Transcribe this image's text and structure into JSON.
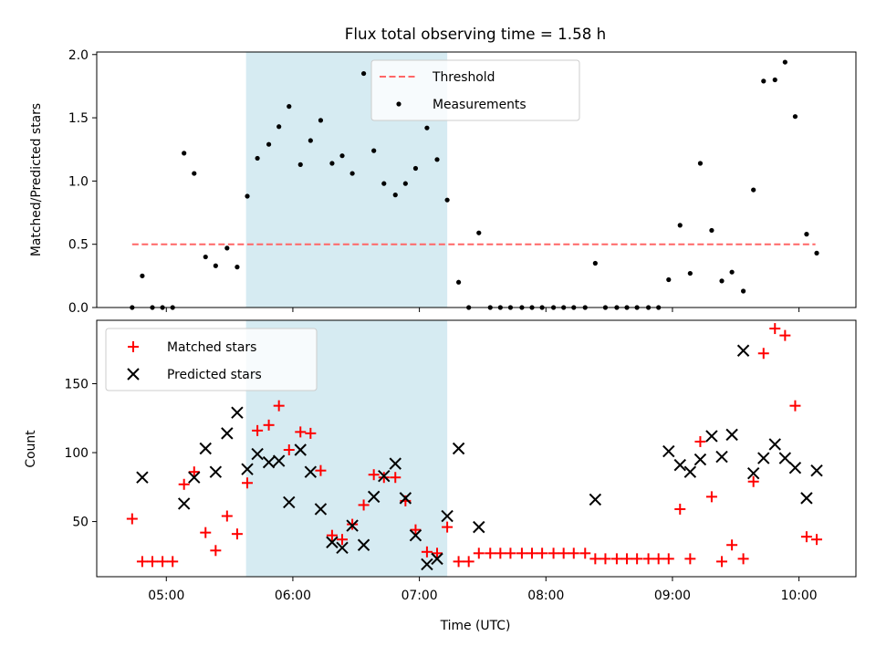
{
  "title": "Flux total observing time = 1.58 h",
  "x_axis": {
    "label": "Time (UTC)",
    "ticks": [
      {
        "value": 5.0,
        "label": "05:00"
      },
      {
        "value": 6.0,
        "label": "06:00"
      },
      {
        "value": 7.0,
        "label": "07:00"
      },
      {
        "value": 8.0,
        "label": "08:00"
      },
      {
        "value": 9.0,
        "label": "09:00"
      },
      {
        "value": 10.0,
        "label": "10:00"
      }
    ]
  },
  "chart_data": [
    {
      "type": "scatter",
      "title": "Flux total observing time = 1.58 h",
      "xlabel": "Time (UTC)",
      "ylabel": "Matched/Predicted stars",
      "xlim": [
        4.45,
        10.45
      ],
      "ylim": [
        0,
        2.02
      ],
      "yticks": [
        0.0,
        0.5,
        1.0,
        1.5,
        2.0
      ],
      "ytick_labels": [
        "0.0",
        "0.5",
        "1.0",
        "1.5",
        "2.0"
      ],
      "grid": false,
      "legend": {
        "placement": "top-center",
        "entries": [
          "Threshold",
          "Measurements"
        ]
      },
      "shaded_interval": {
        "x": [
          5.63,
          7.22
        ],
        "color": "#add8e6"
      },
      "threshold": {
        "name": "Threshold",
        "value": 0.5,
        "x": [
          4.73,
          10.13
        ],
        "color": "#ff6666"
      },
      "series": [
        {
          "name": "Measurements",
          "color": "#000000",
          "points": [
            [
              4.73,
              0.0
            ],
            [
              4.81,
              0.25
            ],
            [
              4.89,
              0.0
            ],
            [
              4.97,
              0.0
            ],
            [
              5.05,
              0.0
            ],
            [
              5.14,
              1.22
            ],
            [
              5.22,
              1.06
            ],
            [
              5.31,
              0.4
            ],
            [
              5.39,
              0.33
            ],
            [
              5.48,
              0.47
            ],
            [
              5.56,
              0.32
            ],
            [
              5.64,
              0.88
            ],
            [
              5.72,
              1.18
            ],
            [
              5.81,
              1.29
            ],
            [
              5.89,
              1.43
            ],
            [
              5.97,
              1.59
            ],
            [
              6.06,
              1.13
            ],
            [
              6.14,
              1.32
            ],
            [
              6.22,
              1.48
            ],
            [
              6.31,
              1.14
            ],
            [
              6.39,
              1.2
            ],
            [
              6.47,
              1.06
            ],
            [
              6.56,
              1.85
            ],
            [
              6.64,
              1.24
            ],
            [
              6.72,
              0.98
            ],
            [
              6.81,
              0.89
            ],
            [
              6.89,
              0.98
            ],
            [
              6.97,
              1.1
            ],
            [
              7.06,
              1.42
            ],
            [
              7.14,
              1.17
            ],
            [
              7.22,
              0.85
            ],
            [
              7.31,
              0.2
            ],
            [
              7.39,
              0.0
            ],
            [
              7.47,
              0.59
            ],
            [
              7.56,
              0.0
            ],
            [
              7.64,
              0.0
            ],
            [
              7.72,
              0.0
            ],
            [
              7.81,
              0.0
            ],
            [
              7.89,
              0.0
            ],
            [
              7.97,
              0.0
            ],
            [
              8.06,
              0.0
            ],
            [
              8.14,
              0.0
            ],
            [
              8.22,
              0.0
            ],
            [
              8.31,
              0.0
            ],
            [
              8.39,
              0.35
            ],
            [
              8.47,
              0.0
            ],
            [
              8.56,
              0.0
            ],
            [
              8.64,
              0.0
            ],
            [
              8.72,
              0.0
            ],
            [
              8.81,
              0.0
            ],
            [
              8.89,
              0.0
            ],
            [
              8.97,
              0.22
            ],
            [
              9.06,
              0.65
            ],
            [
              9.14,
              0.27
            ],
            [
              9.22,
              1.14
            ],
            [
              9.31,
              0.61
            ],
            [
              9.39,
              0.21
            ],
            [
              9.47,
              0.28
            ],
            [
              9.56,
              0.13
            ],
            [
              9.64,
              0.93
            ],
            [
              9.72,
              1.79
            ],
            [
              9.81,
              1.8
            ],
            [
              9.89,
              1.94
            ],
            [
              9.97,
              1.51
            ],
            [
              10.06,
              0.58
            ],
            [
              10.14,
              0.43
            ]
          ]
        }
      ]
    },
    {
      "type": "scatter",
      "xlabel": "Time (UTC)",
      "ylabel": "Count",
      "xlim": [
        4.45,
        10.45
      ],
      "ylim": [
        10,
        196
      ],
      "yticks": [
        50,
        100,
        150
      ],
      "ytick_labels": [
        "50",
        "100",
        "150"
      ],
      "grid": false,
      "legend": {
        "placement": "top-left",
        "entries": [
          "Matched stars",
          "Predicted stars"
        ]
      },
      "shaded_interval": {
        "x": [
          5.63,
          7.22
        ],
        "color": "#add8e6"
      },
      "series": [
        {
          "name": "Matched stars",
          "marker": "plus",
          "color": "#ff0000",
          "points": [
            [
              4.73,
              52
            ],
            [
              4.81,
              21
            ],
            [
              4.89,
              21
            ],
            [
              4.97,
              21
            ],
            [
              5.05,
              21
            ],
            [
              5.14,
              77
            ],
            [
              5.22,
              86
            ],
            [
              5.31,
              42
            ],
            [
              5.39,
              29
            ],
            [
              5.48,
              54
            ],
            [
              5.56,
              41
            ],
            [
              5.64,
              78
            ],
            [
              5.72,
              116
            ],
            [
              5.81,
              120
            ],
            [
              5.89,
              134
            ],
            [
              5.97,
              102
            ],
            [
              6.06,
              115
            ],
            [
              6.14,
              114
            ],
            [
              6.22,
              87
            ],
            [
              6.31,
              40
            ],
            [
              6.39,
              37
            ],
            [
              6.47,
              48
            ],
            [
              6.56,
              62
            ],
            [
              6.64,
              84
            ],
            [
              6.72,
              82
            ],
            [
              6.81,
              82
            ],
            [
              6.89,
              65
            ],
            [
              6.97,
              44
            ],
            [
              7.06,
              28
            ],
            [
              7.14,
              27
            ],
            [
              7.22,
              46
            ],
            [
              7.31,
              21
            ],
            [
              7.39,
              21
            ],
            [
              7.47,
              27
            ],
            [
              7.56,
              27
            ],
            [
              7.64,
              27
            ],
            [
              7.72,
              27
            ],
            [
              7.81,
              27
            ],
            [
              7.89,
              27
            ],
            [
              7.97,
              27
            ],
            [
              8.06,
              27
            ],
            [
              8.14,
              27
            ],
            [
              8.22,
              27
            ],
            [
              8.31,
              27
            ],
            [
              8.39,
              23
            ],
            [
              8.47,
              23
            ],
            [
              8.56,
              23
            ],
            [
              8.64,
              23
            ],
            [
              8.72,
              23
            ],
            [
              8.81,
              23
            ],
            [
              8.89,
              23
            ],
            [
              8.97,
              23
            ],
            [
              9.06,
              59
            ],
            [
              9.14,
              23
            ],
            [
              9.22,
              108
            ],
            [
              9.31,
              68
            ],
            [
              9.39,
              21
            ],
            [
              9.47,
              33
            ],
            [
              9.56,
              23
            ],
            [
              9.64,
              79
            ],
            [
              9.72,
              172
            ],
            [
              9.81,
              190
            ],
            [
              9.89,
              185
            ],
            [
              9.97,
              134
            ],
            [
              10.06,
              39
            ],
            [
              10.14,
              37
            ]
          ]
        },
        {
          "name": "Predicted stars",
          "marker": "x",
          "color": "#000000",
          "points": [
            [
              4.81,
              82
            ],
            [
              5.14,
              63
            ],
            [
              5.22,
              82
            ],
            [
              5.31,
              103
            ],
            [
              5.39,
              86
            ],
            [
              5.48,
              114
            ],
            [
              5.56,
              129
            ],
            [
              5.64,
              88
            ],
            [
              5.72,
              99
            ],
            [
              5.81,
              93
            ],
            [
              5.89,
              94
            ],
            [
              5.97,
              64
            ],
            [
              6.06,
              102
            ],
            [
              6.14,
              86
            ],
            [
              6.22,
              59
            ],
            [
              6.31,
              35
            ],
            [
              6.39,
              31
            ],
            [
              6.47,
              47
            ],
            [
              6.56,
              33
            ],
            [
              6.64,
              68
            ],
            [
              6.72,
              83
            ],
            [
              6.81,
              92
            ],
            [
              6.89,
              67
            ],
            [
              6.97,
              40
            ],
            [
              7.06,
              19
            ],
            [
              7.14,
              23
            ],
            [
              7.22,
              54
            ],
            [
              7.31,
              103
            ],
            [
              7.47,
              46
            ],
            [
              8.39,
              66
            ],
            [
              8.97,
              101
            ],
            [
              9.06,
              91
            ],
            [
              9.14,
              86
            ],
            [
              9.22,
              95
            ],
            [
              9.31,
              112
            ],
            [
              9.39,
              97
            ],
            [
              9.47,
              113
            ],
            [
              9.56,
              174
            ],
            [
              9.64,
              85
            ],
            [
              9.72,
              96
            ],
            [
              9.81,
              106
            ],
            [
              9.89,
              96
            ],
            [
              9.97,
              89
            ],
            [
              10.06,
              67
            ],
            [
              10.14,
              87
            ]
          ]
        }
      ]
    }
  ]
}
